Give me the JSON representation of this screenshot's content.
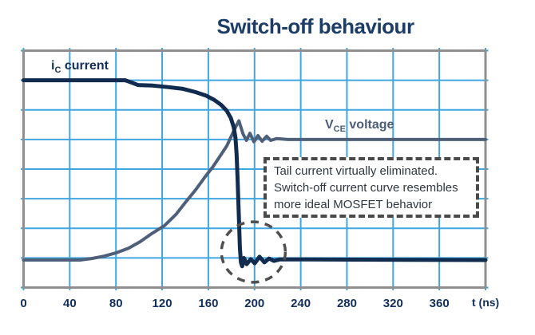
{
  "title": "Switch-off behaviour",
  "labels": {
    "current": {
      "base": "i",
      "sub": "C",
      "rest": " current"
    },
    "voltage": {
      "base": "V",
      "sub": "CE",
      "rest": " voltage"
    }
  },
  "axis": {
    "tick_labels": [
      "0",
      "40",
      "80",
      "120",
      "160",
      "200",
      "240",
      "280",
      "320",
      "360"
    ],
    "unit_label": "t (ns)"
  },
  "annotation": {
    "lines": [
      "Tail current virtually eliminated.",
      "Switch-off current curve resembles",
      "more ideal MOSFET behavior"
    ]
  },
  "colors": {
    "background": "#ffffff",
    "title_text": "#1c3d66",
    "grid_line": "#3fa6e0",
    "plot_border": "#8f8f8f",
    "current_curve": "#122c50",
    "voltage_curve": "#4e5f7a",
    "tick_text": "#13305c",
    "annotation_text": "#2e3640",
    "annotation_border": "#4a4a4a",
    "highlight_circle": "#4f4f4f"
  },
  "chart_data": {
    "type": "line",
    "title": "Switch-off behaviour",
    "xlabel": "t (ns)",
    "ylabel": "",
    "x_range_ns": [
      0,
      400
    ],
    "x_ticks": [
      0,
      40,
      80,
      120,
      160,
      200,
      240,
      280,
      320,
      360
    ],
    "x_gridlines_ns": [
      0,
      40,
      80,
      120,
      160,
      200,
      240,
      280,
      320,
      360,
      400
    ],
    "y_unit": "oscilloscope grid divisions (no numeric scale shown)",
    "y_divisions": 8,
    "y_gridlines_div": [
      0,
      1,
      2,
      3,
      4,
      5,
      6,
      7,
      8
    ],
    "grid": true,
    "legend_position": "labels-on-plot",
    "series": [
      {
        "name": "VCE voltage",
        "data_name": "vce-voltage-curve",
        "color_key": "voltage_curve",
        "width": 4,
        "points": [
          [
            0,
            0.93
          ],
          [
            49,
            0.93
          ],
          [
            59,
            0.98
          ],
          [
            70,
            1.06
          ],
          [
            80,
            1.17
          ],
          [
            91,
            1.33
          ],
          [
            101,
            1.55
          ],
          [
            111,
            1.82
          ],
          [
            122,
            2.09
          ],
          [
            132,
            2.47
          ],
          [
            140,
            2.87
          ],
          [
            149,
            3.3
          ],
          [
            157,
            3.73
          ],
          [
            164,
            4.08
          ],
          [
            170,
            4.43
          ],
          [
            176,
            4.78
          ],
          [
            180.5,
            5.16
          ],
          [
            184,
            5.45
          ],
          [
            186.5,
            5.63
          ],
          [
            190,
            5.19
          ],
          [
            193,
            4.97
          ],
          [
            196,
            5.21
          ],
          [
            199.5,
            4.92
          ],
          [
            203,
            5.13
          ],
          [
            206.5,
            4.94
          ],
          [
            210.5,
            5.11
          ],
          [
            214,
            4.97
          ],
          [
            219,
            5.03
          ],
          [
            229,
            5.0
          ],
          [
            400,
            5.0
          ]
        ]
      },
      {
        "name": "iC current",
        "data_name": "ic-current-curve",
        "color_key": "current_curve",
        "width": 5,
        "points": [
          [
            0,
            7.0
          ],
          [
            88,
            7.0
          ],
          [
            93,
            6.93
          ],
          [
            99,
            6.84
          ],
          [
            112,
            6.82
          ],
          [
            125,
            6.77
          ],
          [
            138,
            6.71
          ],
          [
            149,
            6.6
          ],
          [
            158,
            6.48
          ],
          [
            165,
            6.34
          ],
          [
            171,
            6.17
          ],
          [
            176,
            5.97
          ],
          [
            179.5,
            5.72
          ],
          [
            182,
            5.42
          ],
          [
            183.5,
            5.05
          ],
          [
            184.5,
            4.5
          ],
          [
            185.3,
            3.7
          ],
          [
            186,
            2.9
          ],
          [
            186.7,
            2.1
          ],
          [
            187.3,
            1.35
          ],
          [
            188.2,
            0.85
          ],
          [
            189.3,
            0.72
          ],
          [
            190.8,
            1.0
          ],
          [
            193.2,
            0.79
          ],
          [
            196.7,
            0.96
          ],
          [
            200.2,
            0.82
          ],
          [
            204.3,
            1.04
          ],
          [
            208.5,
            0.85
          ],
          [
            212.6,
            0.98
          ],
          [
            216.8,
            0.9
          ],
          [
            222,
            0.95
          ],
          [
            400,
            0.93
          ]
        ]
      }
    ],
    "highlight_circle": {
      "center_t_ns": 199,
      "center_div": 1.2,
      "radius_t_ns": 27.7,
      "radius_div": 1.02,
      "meaning": "region where tail current is eliminated"
    }
  }
}
